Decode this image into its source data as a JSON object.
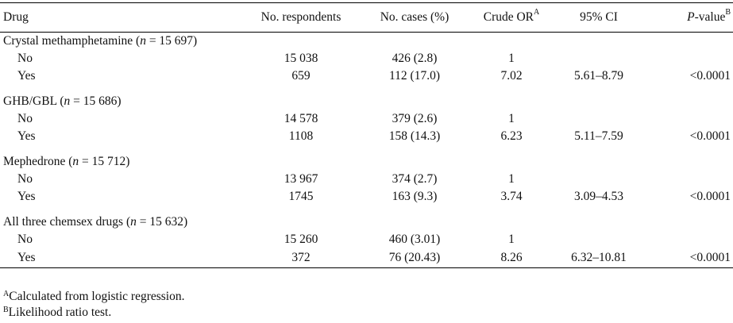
{
  "headers": {
    "drug": "Drug",
    "respondents": "No. respondents",
    "cases": "No. cases (%)",
    "crude_or": "Crude OR",
    "crude_or_sup": "A",
    "ci": "95% CI",
    "pvalue": "P-value",
    "pvalue_sup": "B"
  },
  "groups": [
    {
      "label": "Crystal methamphetamine (n = 15 697)",
      "rows": [
        {
          "level": "No",
          "respondents": "15 038",
          "cases": "426 (2.8)",
          "or": "1",
          "ci": "",
          "p": ""
        },
        {
          "level": "Yes",
          "respondents": "659",
          "cases": "112 (17.0)",
          "or": "7.02",
          "ci": "5.61–8.79",
          "p": "<0.0001"
        }
      ]
    },
    {
      "label": "GHB/GBL (n = 15 686)",
      "rows": [
        {
          "level": "No",
          "respondents": "14 578",
          "cases": "379 (2.6)",
          "or": "1",
          "ci": "",
          "p": ""
        },
        {
          "level": "Yes",
          "respondents": "1108",
          "cases": "158 (14.3)",
          "or": "6.23",
          "ci": "5.11–7.59",
          "p": "<0.0001"
        }
      ]
    },
    {
      "label": "Mephedrone (n = 15 712)",
      "rows": [
        {
          "level": "No",
          "respondents": "13 967",
          "cases": "374 (2.7)",
          "or": "1",
          "ci": "",
          "p": ""
        },
        {
          "level": "Yes",
          "respondents": "1745",
          "cases": "163 (9.3)",
          "or": "3.74",
          "ci": "3.09–4.53",
          "p": "<0.0001"
        }
      ]
    },
    {
      "label": "All three chemsex drugs (n = 15 632)",
      "rows": [
        {
          "level": "No",
          "respondents": "15 260",
          "cases": "460 (3.01)",
          "or": "1",
          "ci": "",
          "p": ""
        },
        {
          "level": "Yes",
          "respondents": "372",
          "cases": "76 (20.43)",
          "or": "8.26",
          "ci": "6.32–10.81",
          "p": "<0.0001"
        }
      ]
    }
  ],
  "footnotes": [
    {
      "mark": "A",
      "text": "Calculated from logistic regression."
    },
    {
      "mark": "B",
      "text": "Likelihood ratio test."
    }
  ]
}
